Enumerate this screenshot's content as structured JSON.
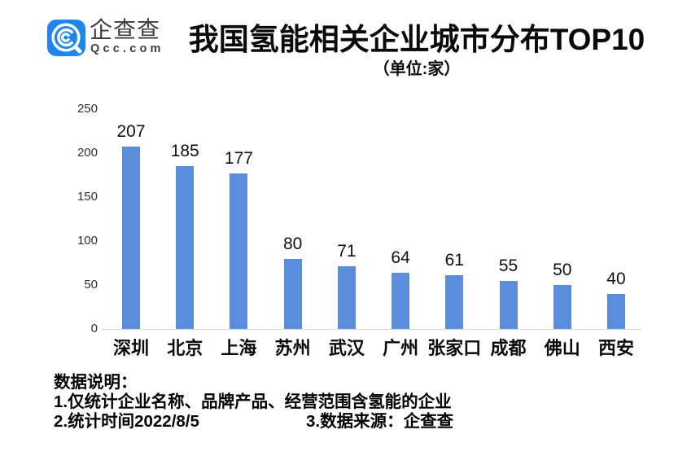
{
  "brand": {
    "logo_text": "企查查",
    "logo_domain": "Qcc.com",
    "logo_color": "#2186EB"
  },
  "header": {
    "title": "我国氢能相关企业城市分布TOP10",
    "subtitle": "（单位:家）"
  },
  "chart_data": {
    "type": "bar",
    "title": "我国氢能相关企业城市分布TOP10",
    "subtitle_unit": "（单位:家）",
    "categories": [
      "深圳",
      "北京",
      "上海",
      "苏州",
      "武汉",
      "广州",
      "张家口",
      "成都",
      "佛山",
      "西安"
    ],
    "values": [
      207,
      185,
      177,
      80,
      71,
      64,
      61,
      55,
      50,
      40
    ],
    "yticks": [
      0,
      50,
      100,
      150,
      200,
      250
    ],
    "ylim": [
      0,
      250
    ],
    "xlabel": "",
    "ylabel": "",
    "grid": false,
    "legend": false,
    "bar_color": "#5A8EDC"
  },
  "footer": {
    "heading": "数据说明：",
    "note1": "1.仅统计企业名称、品牌产品、经营范围含氢能的企业",
    "note2": "2.统计时间2022/8/5",
    "note3": "3.数据来源：企查查"
  }
}
